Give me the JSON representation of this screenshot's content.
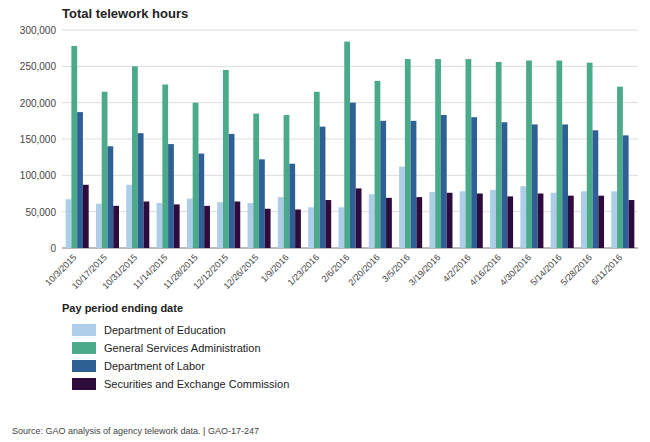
{
  "chart_data": {
    "type": "bar",
    "title": "Total telework hours",
    "xlabel": "Pay period ending date",
    "categories": [
      "10/3/2015",
      "10/17/2015",
      "10/31/2015",
      "11/14/2015",
      "11/28/2015",
      "12/12/2015",
      "12/26/2015",
      "1/9/2016",
      "1/23/2016",
      "2/6/2016",
      "2/20/2016",
      "3/5/2016",
      "3/19/2016",
      "4/2/2016",
      "4/16/2016",
      "4/30/2016",
      "5/14/2016",
      "5/28/2016",
      "6/11/2016"
    ],
    "series": [
      {
        "name": "Department of Education",
        "color": "#aecde8",
        "values": [
          67000,
          61000,
          87000,
          62000,
          68000,
          63000,
          62000,
          70000,
          56000,
          56000,
          74000,
          112000,
          77000,
          78000,
          80000,
          85000,
          76000,
          78000,
          78000
        ]
      },
      {
        "name": "General Services Administration",
        "color": "#4aaa8a",
        "values": [
          278000,
          215000,
          250000,
          225000,
          200000,
          245000,
          185000,
          183000,
          215000,
          284000,
          230000,
          260000,
          260000,
          260000,
          256000,
          258000,
          258000,
          255000,
          222000
        ]
      },
      {
        "name": "Department of Labor",
        "color": "#2e6096",
        "values": [
          187000,
          140000,
          158000,
          143000,
          130000,
          157000,
          122000,
          116000,
          167000,
          200000,
          175000,
          175000,
          183000,
          180000,
          173000,
          170000,
          170000,
          162000,
          155000
        ]
      },
      {
        "name": "Securities and Exchange Commission",
        "color": "#2d0b3c",
        "values": [
          87000,
          58000,
          64000,
          60000,
          58000,
          64000,
          54000,
          53000,
          66000,
          82000,
          69000,
          70000,
          76000,
          75000,
          71000,
          75000,
          72000,
          72000,
          66000
        ]
      }
    ],
    "ylim": [
      0,
      300000
    ],
    "yticks": [
      0,
      {
        "value": 50000,
        "label": "50,000"
      },
      {
        "value": 100000,
        "label": "100,000"
      },
      {
        "value": 150000,
        "label": "150,000"
      },
      {
        "value": 200000,
        "label": "200,000"
      },
      {
        "value": 250000,
        "label": "250,000"
      },
      {
        "value": 300000,
        "label": "300,000"
      }
    ],
    "grid": true,
    "legend": "bottom",
    "annotations": [
      "Source: GAO analysis of agency telework data.  |  GAO-17-247"
    ]
  }
}
